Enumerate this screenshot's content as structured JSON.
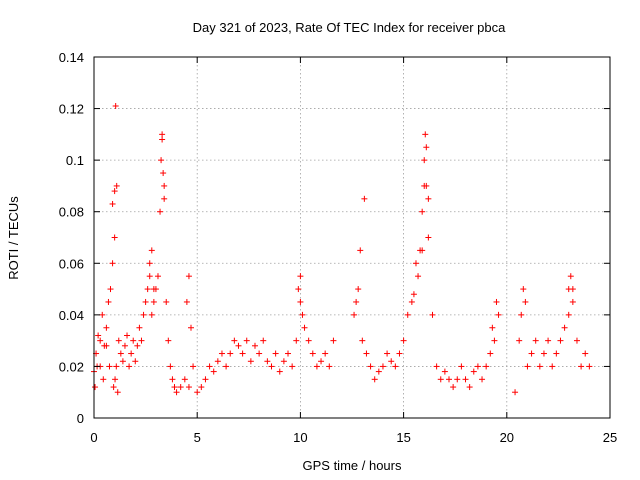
{
  "chart_data": {
    "type": "scatter",
    "title": "Day 321 of 2023, Rate Of TEC Index for receiver pbca",
    "xlabel": "GPS time / hours",
    "ylabel": "ROTI / TECUs",
    "xlim": [
      0,
      25
    ],
    "ylim": [
      0,
      0.14
    ],
    "x_ticks": [
      0,
      5,
      10,
      15,
      20,
      25
    ],
    "x_tick_labels": [
      "0",
      "5",
      "10",
      "15",
      "20",
      "25"
    ],
    "y_ticks": [
      0,
      0.02,
      0.04,
      0.06,
      0.08,
      0.1,
      0.12,
      0.14
    ],
    "y_tick_labels": [
      "0",
      "0.02",
      "0.04",
      "0.06",
      "0.08",
      "0.1",
      "0.12",
      "0.14"
    ],
    "grid": true,
    "marker": "+",
    "color": "#ff0000",
    "series": [
      {
        "x": [
          0.0,
          0.1,
          0.2,
          0.3,
          0.4,
          0.5,
          0.6,
          0.7,
          0.8,
          0.9,
          1.0,
          1.05,
          1.1,
          1.2,
          1.3,
          1.4,
          1.5,
          1.6,
          1.7,
          1.8,
          1.9,
          2.0,
          2.1,
          2.2,
          2.3,
          2.4,
          2.5,
          2.6,
          2.7,
          2.8,
          2.9,
          3.0,
          3.1,
          3.2,
          3.3,
          3.35,
          3.4,
          3.5,
          3.6,
          3.7,
          3.8,
          3.9,
          4.0,
          4.2,
          4.4,
          4.6,
          4.8,
          5.0,
          5.2,
          5.4,
          5.6,
          5.8,
          6.0,
          6.2,
          6.4,
          6.6,
          6.8,
          7.0,
          7.2,
          7.4,
          7.6,
          7.8,
          8.0,
          8.2,
          8.4,
          8.6,
          8.8,
          9.0,
          9.2,
          9.4,
          9.6,
          9.8,
          10.0,
          10.2,
          10.4,
          10.6,
          10.8,
          11.0,
          11.2,
          11.4,
          11.6,
          12.6,
          12.8,
          13.0,
          13.2,
          13.4,
          13.6,
          13.8,
          14.0,
          14.2,
          14.4,
          14.6,
          14.8,
          15.0,
          15.2,
          15.4,
          15.6,
          15.8,
          15.9,
          16.0,
          16.1,
          16.2,
          16.4,
          16.6,
          16.8,
          17.0,
          17.2,
          17.4,
          17.6,
          17.8,
          18.0,
          18.2,
          18.4,
          18.6,
          18.8,
          19.0,
          19.2,
          19.4,
          19.6,
          20.4,
          20.6,
          20.8,
          21.0,
          21.2,
          21.4,
          21.6,
          21.8,
          22.0,
          22.2,
          22.4,
          22.6,
          22.8,
          23.0,
          23.2,
          23.4,
          23.6,
          23.8,
          24.0,
          0.05,
          0.15,
          0.3,
          0.45,
          0.6,
          0.75,
          0.95,
          1.02,
          1.08,
          1.15,
          2.7,
          2.8,
          2.9,
          3.25,
          3.3,
          3.4,
          4.5,
          4.6,
          4.7,
          9.9,
          10.0,
          10.1,
          12.7,
          12.9,
          13.1,
          15.5,
          15.7,
          15.9,
          16.0,
          16.05,
          16.1,
          16.2,
          19.3,
          19.5,
          20.7,
          20.9,
          23.0,
          23.1,
          23.2,
          0.9,
          1.0
        ],
        "y": [
          0.018,
          0.025,
          0.032,
          0.02,
          0.04,
          0.028,
          0.035,
          0.045,
          0.05,
          0.06,
          0.07,
          0.121,
          0.09,
          0.03,
          0.025,
          0.022,
          0.028,
          0.032,
          0.02,
          0.025,
          0.03,
          0.022,
          0.028,
          0.035,
          0.03,
          0.04,
          0.045,
          0.05,
          0.06,
          0.04,
          0.045,
          0.05,
          0.055,
          0.08,
          0.11,
          0.095,
          0.085,
          0.045,
          0.03,
          0.02,
          0.015,
          0.012,
          0.01,
          0.012,
          0.015,
          0.012,
          0.02,
          0.01,
          0.012,
          0.015,
          0.02,
          0.018,
          0.022,
          0.025,
          0.02,
          0.025,
          0.03,
          0.028,
          0.025,
          0.03,
          0.022,
          0.028,
          0.025,
          0.03,
          0.022,
          0.02,
          0.025,
          0.018,
          0.022,
          0.025,
          0.02,
          0.03,
          0.045,
          0.035,
          0.03,
          0.025,
          0.02,
          0.022,
          0.025,
          0.02,
          0.03,
          0.04,
          0.05,
          0.03,
          0.025,
          0.02,
          0.015,
          0.018,
          0.02,
          0.025,
          0.022,
          0.02,
          0.025,
          0.03,
          0.04,
          0.045,
          0.06,
          0.065,
          0.08,
          0.1,
          0.09,
          0.07,
          0.04,
          0.02,
          0.015,
          0.018,
          0.015,
          0.012,
          0.015,
          0.02,
          0.015,
          0.012,
          0.018,
          0.02,
          0.015,
          0.02,
          0.025,
          0.03,
          0.04,
          0.01,
          0.03,
          0.05,
          0.02,
          0.025,
          0.03,
          0.02,
          0.025,
          0.03,
          0.02,
          0.025,
          0.03,
          0.035,
          0.04,
          0.05,
          0.03,
          0.02,
          0.025,
          0.02,
          0.012,
          0.02,
          0.03,
          0.015,
          0.028,
          0.02,
          0.012,
          0.015,
          0.02,
          0.01,
          0.055,
          0.065,
          0.05,
          0.1,
          0.108,
          0.09,
          0.045,
          0.055,
          0.035,
          0.05,
          0.055,
          0.04,
          0.045,
          0.065,
          0.085,
          0.048,
          0.055,
          0.065,
          0.09,
          0.11,
          0.105,
          0.085,
          0.035,
          0.045,
          0.04,
          0.045,
          0.05,
          0.055,
          0.045,
          0.083,
          0.088
        ]
      }
    ]
  }
}
